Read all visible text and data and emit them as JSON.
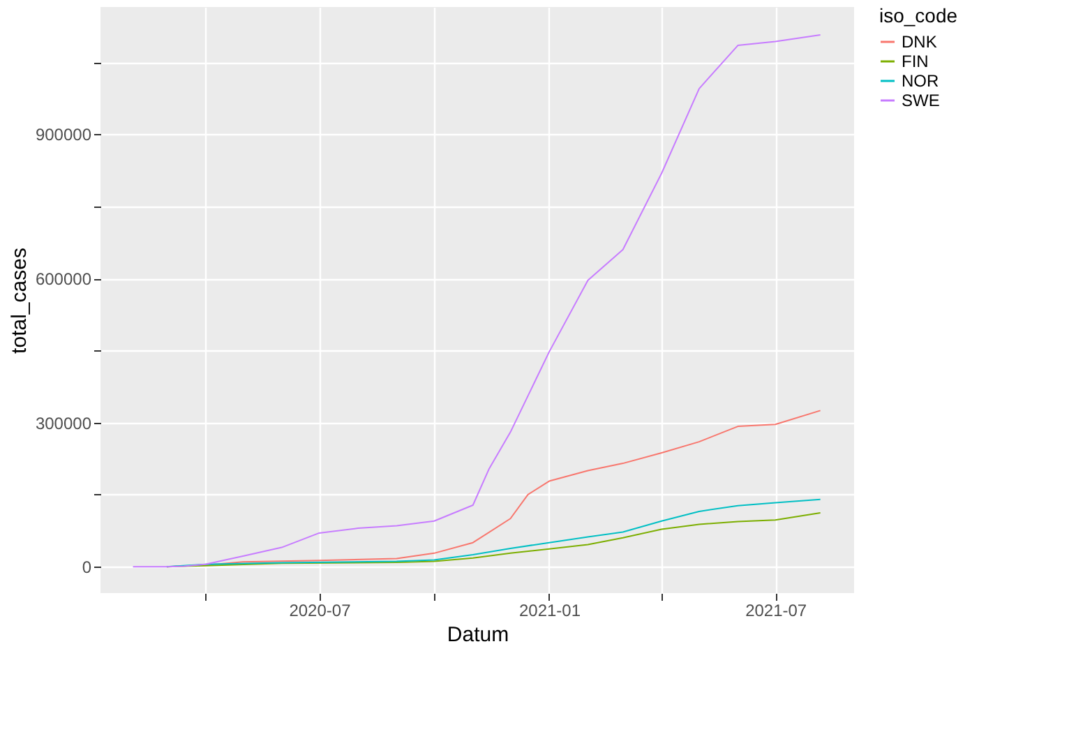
{
  "chart_data": {
    "type": "line",
    "xlabel": "Datum",
    "ylabel": "total_cases",
    "legend_title": "iso_code",
    "legend": "right",
    "grid": true,
    "marker": "none",
    "line_style": "solid",
    "xlim": [
      "2020-01-08",
      "2021-09-02"
    ],
    "xticks": [
      {
        "value": "2020-04-01",
        "label": null
      },
      {
        "value": "2020-07-01",
        "label": "2020-07"
      },
      {
        "value": "2020-10-01",
        "label": null
      },
      {
        "value": "2021-01-01",
        "label": "2021-01"
      },
      {
        "value": "2021-04-01",
        "label": null
      },
      {
        "value": "2021-07-01",
        "label": "2021-07"
      }
    ],
    "ylim": [
      -55000,
      1165000
    ],
    "yticks": [
      0,
      {
        "value": 150000,
        "label": null
      },
      300000,
      {
        "value": 450000,
        "label": null
      },
      600000,
      {
        "value": 750000,
        "label": null
      },
      900000,
      {
        "value": 1050000,
        "label": null
      }
    ],
    "series": [
      {
        "name": "DNK",
        "color": "#f8766d",
        "x": [
          "2020-03-01",
          "2020-04-01",
          "2020-05-01",
          "2020-07-01",
          "2020-09-01",
          "2020-10-01",
          "2020-11-01",
          "2020-12-01",
          "2020-12-15",
          "2021-01-01",
          "2021-02-01",
          "2021-03-01",
          "2021-04-01",
          "2021-05-01",
          "2021-06-01",
          "2021-07-01",
          "2021-08-06"
        ],
        "values": [
          0,
          3000,
          10000,
          13000,
          17000,
          28000,
          50000,
          100000,
          150000,
          178000,
          200000,
          215000,
          237000,
          260000,
          292000,
          296000,
          325000
        ]
      },
      {
        "name": "FIN",
        "color": "#7cae00",
        "x": [
          "2020-03-01",
          "2020-04-01",
          "2020-06-01",
          "2020-09-01",
          "2020-10-01",
          "2020-11-01",
          "2020-12-01",
          "2021-01-01",
          "2021-02-01",
          "2021-03-01",
          "2021-04-01",
          "2021-05-01",
          "2021-06-01",
          "2021-07-01",
          "2021-08-06"
        ],
        "values": [
          0,
          2000,
          7000,
          9000,
          11000,
          18000,
          28000,
          37000,
          46000,
          60000,
          78000,
          88000,
          94000,
          97000,
          112000
        ]
      },
      {
        "name": "NOR",
        "color": "#00bfc4",
        "x": [
          "2020-03-01",
          "2020-04-01",
          "2020-06-01",
          "2020-09-01",
          "2020-10-01",
          "2020-11-01",
          "2020-12-01",
          "2021-01-01",
          "2021-02-01",
          "2021-03-01",
          "2021-04-01",
          "2021-05-01",
          "2021-06-01",
          "2021-07-01",
          "2021-08-06"
        ],
        "values": [
          0,
          5000,
          8000,
          11000,
          14000,
          25000,
          38000,
          50000,
          62000,
          72000,
          95000,
          115000,
          127000,
          133000,
          140000
        ]
      },
      {
        "name": "SWE",
        "color": "#c77cff",
        "x": [
          "2020-02-03",
          "2020-03-01",
          "2020-03-15",
          "2020-04-01",
          "2020-05-01",
          "2020-06-01",
          "2020-07-01",
          "2020-08-01",
          "2020-09-01",
          "2020-10-01",
          "2020-11-01",
          "2020-11-14",
          "2020-12-01",
          "2021-01-01",
          "2021-02-01",
          "2021-03-01",
          "2021-04-01",
          "2021-05-01",
          "2021-06-01",
          "2021-07-01",
          "2021-08-06"
        ],
        "values": [
          0,
          0,
          1000,
          5000,
          22000,
          40000,
          70000,
          80000,
          85000,
          95000,
          128000,
          204000,
          280000,
          447000,
          596000,
          660000,
          819000,
          995000,
          1085000,
          1093000,
          1107000
        ]
      }
    ]
  }
}
